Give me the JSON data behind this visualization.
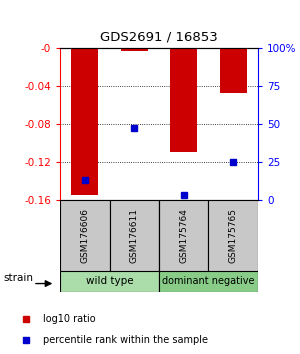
{
  "title": "GDS2691 / 16853",
  "samples": [
    "GSM176606",
    "GSM176611",
    "GSM175764",
    "GSM175765"
  ],
  "log10_ratio": [
    -0.155,
    -0.003,
    -0.11,
    -0.048
  ],
  "percentile_rank": [
    13,
    47,
    3,
    25
  ],
  "ylim": [
    -0.16,
    0
  ],
  "yticks": [
    0,
    -0.04,
    -0.08,
    -0.12,
    -0.16
  ],
  "y2ticks": [
    0,
    25,
    50,
    75,
    100
  ],
  "bar_color": "#cc0000",
  "dot_color": "#0000cc",
  "bar_width": 0.55,
  "sample_box_color": "#c8c8c8",
  "group_colors": [
    "#90ee90",
    "#66cc66"
  ],
  "group_names": [
    "wild type",
    "dominant negative"
  ],
  "legend_red_label": "log10 ratio",
  "legend_blue_label": "percentile rank within the sample"
}
